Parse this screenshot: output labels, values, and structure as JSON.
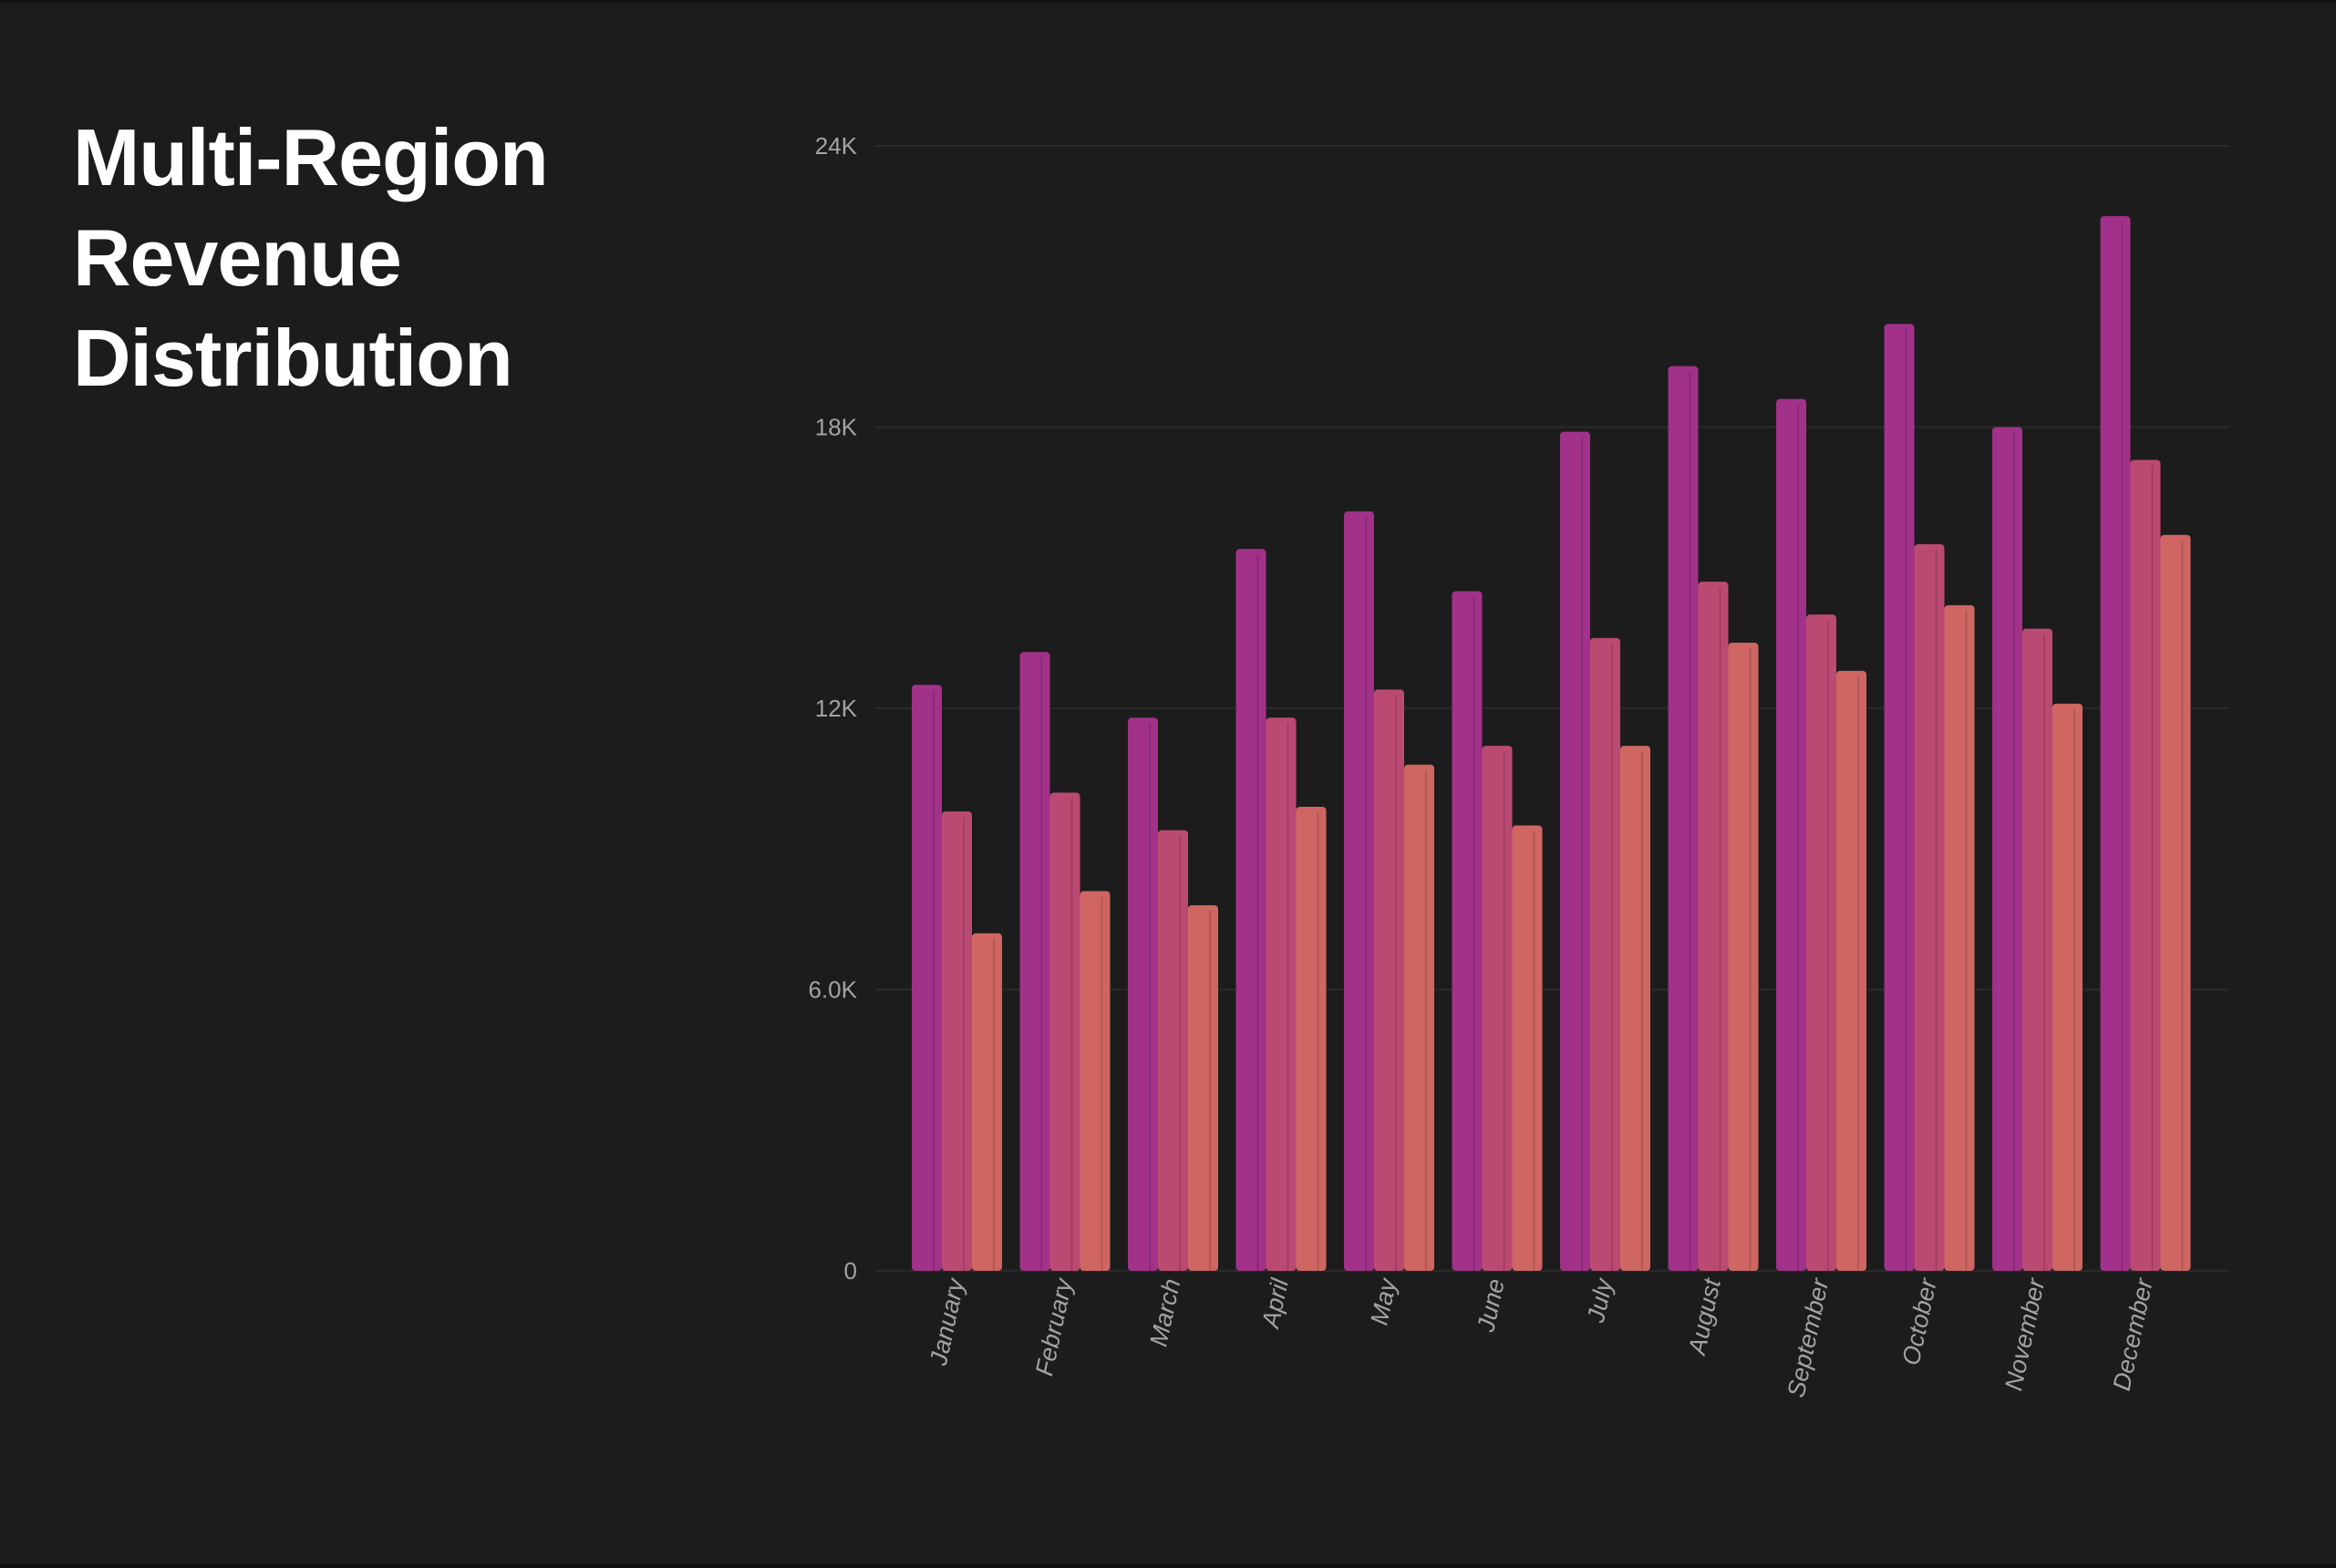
{
  "title_lines": [
    "Multi-Region",
    "Revenue",
    "Distribution"
  ],
  "colors": {
    "background": "#1c1c1c",
    "gridline": "#2a2a2a",
    "series": [
      "#a2318a",
      "#bb4a73",
      "#cf6661"
    ]
  },
  "chart_data": {
    "type": "bar",
    "title": "Multi-Region Revenue Distribution",
    "xlabel": "",
    "ylabel": "",
    "categories": [
      "January",
      "February",
      "March",
      "April",
      "May",
      "June",
      "July",
      "August",
      "September",
      "October",
      "November",
      "December"
    ],
    "series": [
      {
        "values": [
          12500,
          13200,
          11800,
          15400,
          16200,
          14500,
          17900,
          19300,
          18600,
          20200,
          18000,
          22500
        ]
      },
      {
        "values": [
          9800,
          10200,
          9400,
          11800,
          12400,
          11200,
          13500,
          14700,
          14000,
          15500,
          13700,
          17300
        ]
      },
      {
        "values": [
          7200,
          8100,
          7800,
          9900,
          10800,
          9500,
          11200,
          13400,
          12800,
          14200,
          12100,
          15700
        ]
      }
    ],
    "yticks": [
      0,
      6000,
      12000,
      18000,
      24000
    ],
    "ytick_labels": [
      "0",
      "6.0K",
      "12K",
      "18K",
      "24K"
    ],
    "ylim": [
      0,
      24000
    ],
    "grid": true,
    "legend": "none"
  }
}
